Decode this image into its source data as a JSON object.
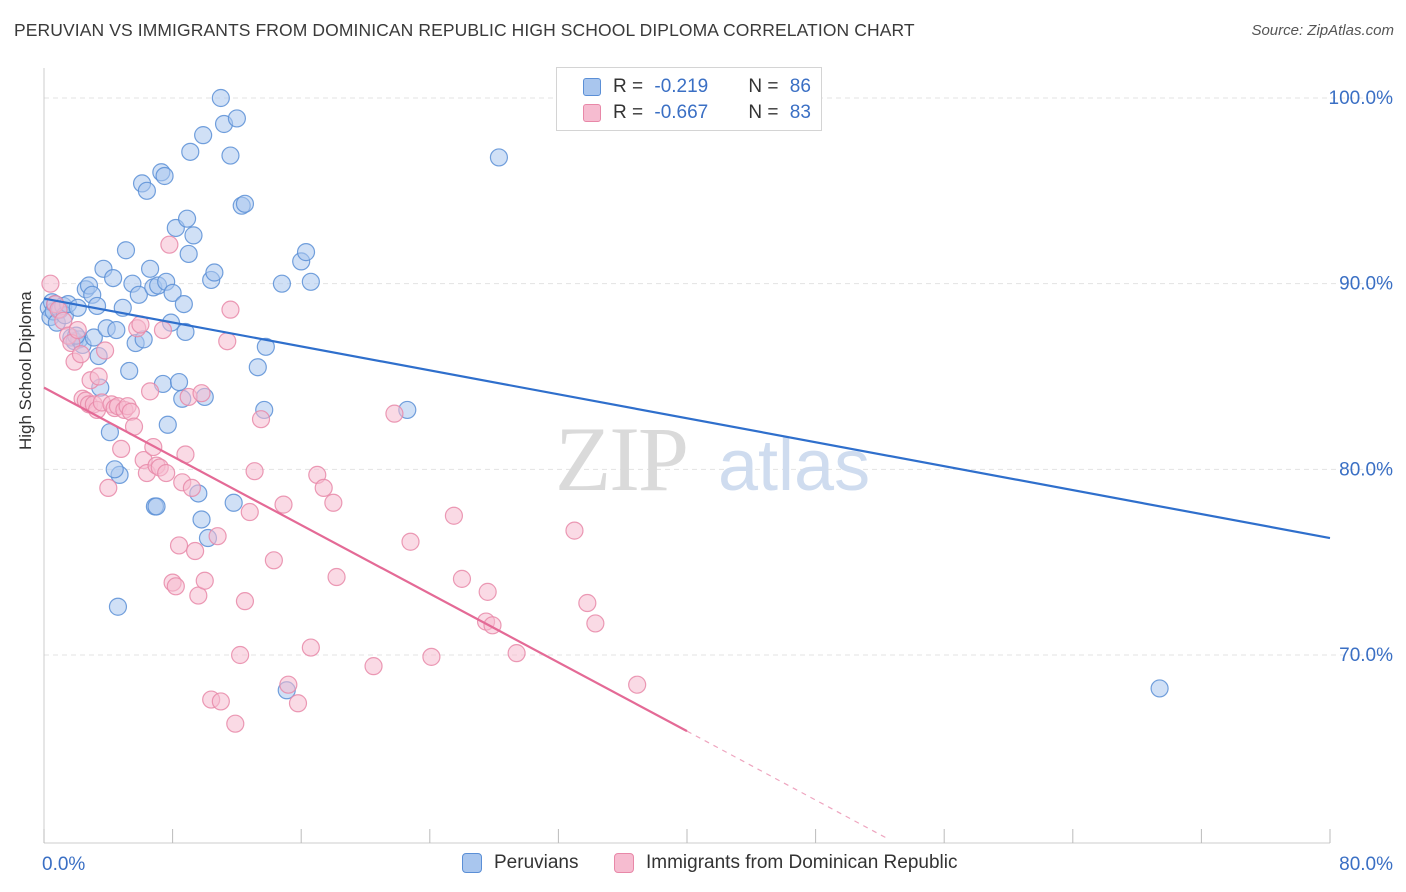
{
  "header": {
    "title": "PERUVIAN VS IMMIGRANTS FROM DOMINICAN REPUBLIC HIGH SCHOOL DIPLOMA CORRELATION CHART",
    "source": "Source: ZipAtlas.com"
  },
  "watermark": {
    "zip": "ZIP",
    "atlas": "atlas"
  },
  "colors": {
    "blue_fill": "#a9c6ee",
    "blue_stroke": "#5b8fd6",
    "blue_line": "#2f6fcc",
    "pink_fill": "#f6bcd0",
    "pink_stroke": "#e888a8",
    "pink_line": "#e46a96",
    "axis_text": "#3a6fc4",
    "grid": "#e3e3e3"
  },
  "legend_top": [
    {
      "r_label": "R = ",
      "r_value": "-0.219",
      "n_label": "N = ",
      "n_value": "86",
      "color": "#a9c6ee",
      "border": "#5b8fd6"
    },
    {
      "r_label": "R = ",
      "r_value": "-0.667",
      "n_label": "N = ",
      "n_value": "83",
      "color": "#f6bcd0",
      "border": "#e888a8"
    }
  ],
  "chart_data": {
    "type": "scatter",
    "title": "PERUVIAN VS IMMIGRANTS FROM DOMINICAN REPUBLIC HIGH SCHOOL DIPLOMA CORRELATION CHART",
    "xlabel": "",
    "ylabel": "High School Diploma",
    "xlim": [
      0,
      80
    ],
    "ylim": [
      60,
      103
    ],
    "x_tick_labels": [
      "0.0%",
      "80.0%"
    ],
    "y_ticks": [
      {
        "value": 100,
        "label": "100.0%"
      },
      {
        "value": 90,
        "label": "90.0%"
      },
      {
        "value": 80,
        "label": "80.0%"
      },
      {
        "value": 70,
        "label": "70.0%"
      }
    ],
    "grid": true,
    "legend_position": "bottom",
    "series": [
      {
        "name": "Peruvians",
        "color": "#a9c6ee",
        "trend": [
          [
            0,
            89.2
          ],
          [
            80,
            76.3
          ]
        ],
        "points": [
          [
            0.3,
            88.7
          ],
          [
            0.4,
            88.2
          ],
          [
            0.5,
            89.0
          ],
          [
            0.6,
            88.5
          ],
          [
            0.7,
            88.9
          ],
          [
            0.8,
            87.9
          ],
          [
            1.0,
            88.6
          ],
          [
            1.2,
            88.8
          ],
          [
            1.3,
            88.3
          ],
          [
            1.5,
            88.9
          ],
          [
            1.7,
            87.1
          ],
          [
            1.9,
            86.9
          ],
          [
            2.1,
            88.7
          ],
          [
            2.2,
            87.0
          ],
          [
            2.4,
            86.7
          ],
          [
            2.6,
            89.7
          ],
          [
            2.8,
            89.9
          ],
          [
            3.0,
            89.4
          ],
          [
            3.1,
            87.1
          ],
          [
            3.3,
            88.8
          ],
          [
            3.4,
            86.1
          ],
          [
            3.5,
            84.4
          ],
          [
            3.7,
            90.8
          ],
          [
            3.9,
            87.6
          ],
          [
            4.1,
            82.0
          ],
          [
            4.3,
            90.3
          ],
          [
            4.5,
            87.5
          ],
          [
            4.7,
            79.7
          ],
          [
            4.9,
            88.7
          ],
          [
            5.1,
            91.8
          ],
          [
            5.3,
            85.3
          ],
          [
            5.5,
            90.0
          ],
          [
            5.7,
            86.8
          ],
          [
            5.9,
            89.4
          ],
          [
            6.1,
            95.4
          ],
          [
            6.2,
            87.0
          ],
          [
            6.4,
            95.0
          ],
          [
            6.6,
            90.8
          ],
          [
            6.8,
            89.8
          ],
          [
            6.9,
            78.0
          ],
          [
            7.1,
            89.9
          ],
          [
            7.3,
            96.0
          ],
          [
            7.4,
            84.6
          ],
          [
            7.5,
            95.8
          ],
          [
            7.6,
            90.1
          ],
          [
            7.7,
            82.4
          ],
          [
            7.9,
            87.9
          ],
          [
            8.0,
            89.5
          ],
          [
            8.2,
            93.0
          ],
          [
            8.4,
            84.7
          ],
          [
            8.6,
            83.8
          ],
          [
            8.7,
            88.9
          ],
          [
            8.8,
            87.4
          ],
          [
            8.9,
            93.5
          ],
          [
            9.0,
            91.6
          ],
          [
            9.1,
            97.1
          ],
          [
            9.3,
            92.6
          ],
          [
            9.6,
            78.7
          ],
          [
            9.8,
            77.3
          ],
          [
            9.9,
            98.0
          ],
          [
            10.0,
            83.9
          ],
          [
            10.2,
            76.3
          ],
          [
            10.4,
            90.2
          ],
          [
            10.6,
            90.6
          ],
          [
            11.0,
            100.0
          ],
          [
            11.2,
            98.6
          ],
          [
            11.6,
            96.9
          ],
          [
            11.8,
            78.2
          ],
          [
            12.0,
            98.9
          ],
          [
            12.3,
            94.2
          ],
          [
            12.5,
            94.3
          ],
          [
            13.3,
            85.5
          ],
          [
            13.7,
            83.2
          ],
          [
            13.8,
            86.6
          ],
          [
            14.8,
            90.0
          ],
          [
            15.1,
            68.1
          ],
          [
            16.0,
            91.2
          ],
          [
            16.3,
            91.7
          ],
          [
            16.6,
            90.1
          ],
          [
            22.6,
            83.2
          ],
          [
            28.3,
            96.8
          ],
          [
            69.4,
            68.2
          ],
          [
            4.4,
            80.0
          ],
          [
            7.0,
            78.0
          ],
          [
            4.6,
            72.6
          ],
          [
            2.0,
            87.2
          ]
        ]
      },
      {
        "name": "Immigrants from Dominican Republic",
        "color": "#f6bcd0",
        "trend": [
          [
            0,
            84.4
          ],
          [
            40,
            65.9
          ]
        ],
        "trend_ext": [
          [
            40,
            65.9
          ],
          [
            52.5,
            60.1
          ]
        ],
        "points": [
          [
            0.4,
            90.0
          ],
          [
            0.7,
            88.9
          ],
          [
            0.9,
            88.6
          ],
          [
            1.2,
            88.0
          ],
          [
            1.5,
            87.2
          ],
          [
            1.7,
            86.8
          ],
          [
            1.9,
            85.8
          ],
          [
            2.1,
            87.5
          ],
          [
            2.3,
            86.2
          ],
          [
            2.4,
            83.8
          ],
          [
            2.6,
            83.7
          ],
          [
            2.8,
            83.5
          ],
          [
            2.9,
            84.8
          ],
          [
            3.1,
            83.5
          ],
          [
            3.3,
            83.2
          ],
          [
            3.4,
            85.0
          ],
          [
            3.6,
            83.6
          ],
          [
            3.8,
            86.4
          ],
          [
            4.0,
            79.0
          ],
          [
            4.2,
            83.5
          ],
          [
            4.4,
            83.3
          ],
          [
            4.6,
            83.4
          ],
          [
            4.8,
            81.1
          ],
          [
            5.0,
            83.2
          ],
          [
            5.2,
            83.4
          ],
          [
            5.4,
            83.1
          ],
          [
            5.6,
            82.3
          ],
          [
            5.8,
            87.6
          ],
          [
            6.0,
            87.8
          ],
          [
            6.2,
            80.5
          ],
          [
            6.4,
            79.8
          ],
          [
            6.6,
            84.2
          ],
          [
            6.8,
            81.2
          ],
          [
            7.0,
            80.2
          ],
          [
            7.2,
            80.1
          ],
          [
            7.4,
            87.5
          ],
          [
            7.6,
            79.8
          ],
          [
            7.8,
            92.1
          ],
          [
            8.0,
            73.9
          ],
          [
            8.2,
            73.7
          ],
          [
            8.4,
            75.9
          ],
          [
            8.6,
            79.3
          ],
          [
            8.8,
            80.8
          ],
          [
            9.0,
            83.9
          ],
          [
            9.2,
            79.0
          ],
          [
            9.4,
            75.6
          ],
          [
            9.6,
            73.2
          ],
          [
            9.8,
            84.1
          ],
          [
            10.0,
            74.0
          ],
          [
            10.4,
            67.6
          ],
          [
            10.8,
            76.4
          ],
          [
            11.0,
            67.5
          ],
          [
            11.4,
            86.9
          ],
          [
            11.6,
            88.6
          ],
          [
            11.9,
            66.3
          ],
          [
            12.2,
            70.0
          ],
          [
            12.5,
            72.9
          ],
          [
            12.8,
            77.7
          ],
          [
            13.1,
            79.9
          ],
          [
            13.5,
            82.7
          ],
          [
            14.3,
            75.1
          ],
          [
            14.9,
            78.1
          ],
          [
            15.2,
            68.4
          ],
          [
            15.8,
            67.4
          ],
          [
            16.6,
            70.4
          ],
          [
            17.0,
            79.7
          ],
          [
            17.4,
            79.0
          ],
          [
            18.0,
            78.2
          ],
          [
            18.2,
            74.2
          ],
          [
            20.5,
            69.4
          ],
          [
            21.8,
            83.0
          ],
          [
            22.8,
            76.1
          ],
          [
            24.1,
            69.9
          ],
          [
            25.5,
            77.5
          ],
          [
            26.0,
            74.1
          ],
          [
            27.5,
            71.8
          ],
          [
            27.6,
            73.4
          ],
          [
            27.9,
            71.6
          ],
          [
            29.4,
            70.1
          ],
          [
            33.0,
            76.7
          ],
          [
            33.8,
            72.8
          ],
          [
            34.3,
            71.7
          ],
          [
            36.9,
            68.4
          ]
        ]
      }
    ]
  }
}
